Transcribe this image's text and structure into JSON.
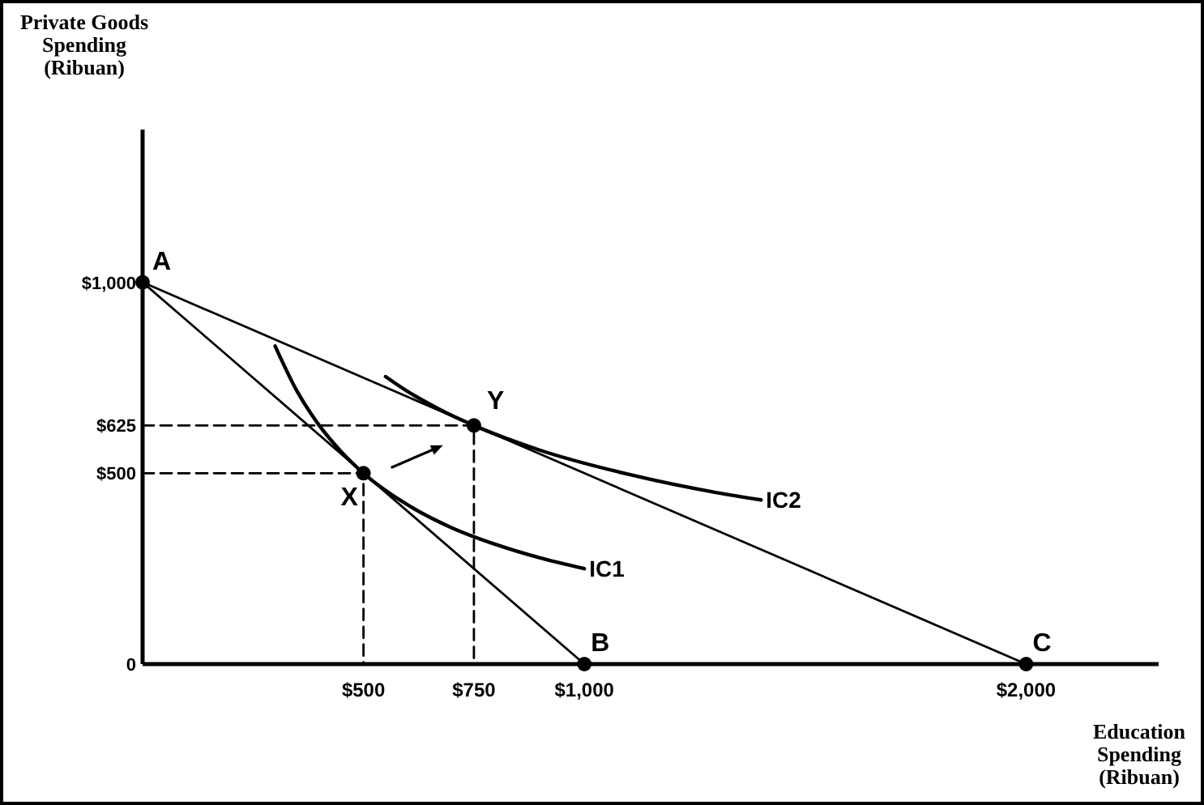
{
  "chart_data": {
    "type": "line",
    "xlabel": "Education Spending (Ribuan)",
    "ylabel": "Private Goods Spending (Ribuan)",
    "xlim": [
      0,
      2300
    ],
    "ylim": [
      0,
      1400
    ],
    "xticks": [
      {
        "value": 500,
        "label": "$500"
      },
      {
        "value": 750,
        "label": "$750"
      },
      {
        "value": 1000,
        "label": "$1,000"
      },
      {
        "value": 2000,
        "label": "$2,000"
      }
    ],
    "yticks": [
      {
        "value": 0,
        "label": "0"
      },
      {
        "value": 500,
        "label": "$500"
      },
      {
        "value": 625,
        "label": "$625"
      },
      {
        "value": 1000,
        "label": "$1,000"
      }
    ],
    "grid": false,
    "series": [
      {
        "color": "#000000",
        "x": [
          0,
          1000
        ],
        "values": [
          1000,
          0
        ]
      },
      {
        "color": "#000000",
        "x": [
          0,
          2000
        ],
        "values": [
          1000,
          0
        ]
      },
      {
        "name": "IC1",
        "color": "#000000",
        "x": [
          300,
          350,
          400,
          450,
          500,
          600,
          700,
          800,
          900,
          1000
        ],
        "values": [
          833,
          714,
          625,
          556,
          500,
          417,
          357,
          313,
          278,
          250
        ]
      },
      {
        "name": "IC2",
        "color": "#000000",
        "x": [
          550,
          600,
          650,
          700,
          750,
          900,
          1100,
          1300,
          1400
        ],
        "values": [
          753,
          714,
          681,
          651,
          625,
          560,
          497,
          449,
          430
        ]
      },
      {
        "color": "#000000",
        "line_style": "dashed",
        "x": [
          0,
          500,
          500
        ],
        "values": [
          500,
          500,
          0
        ]
      },
      {
        "color": "#000000",
        "line_style": "dashed",
        "x": [
          0,
          750,
          750
        ],
        "values": [
          625,
          625,
          0
        ]
      },
      {
        "type": "scatter",
        "color": "#000000",
        "marker": "circle",
        "x": [
          0,
          1000,
          2000,
          500,
          750
        ],
        "values": [
          1000,
          0,
          0,
          500,
          625
        ]
      }
    ],
    "annotations": [
      {
        "text": "A",
        "x": 0,
        "y": 1000
      },
      {
        "text": "B",
        "x": 1000,
        "y": 0
      },
      {
        "text": "C",
        "x": 2000,
        "y": 0
      },
      {
        "text": "X",
        "x": 500,
        "y": 500
      },
      {
        "text": "Y",
        "x": 750,
        "y": 625
      }
    ]
  }
}
